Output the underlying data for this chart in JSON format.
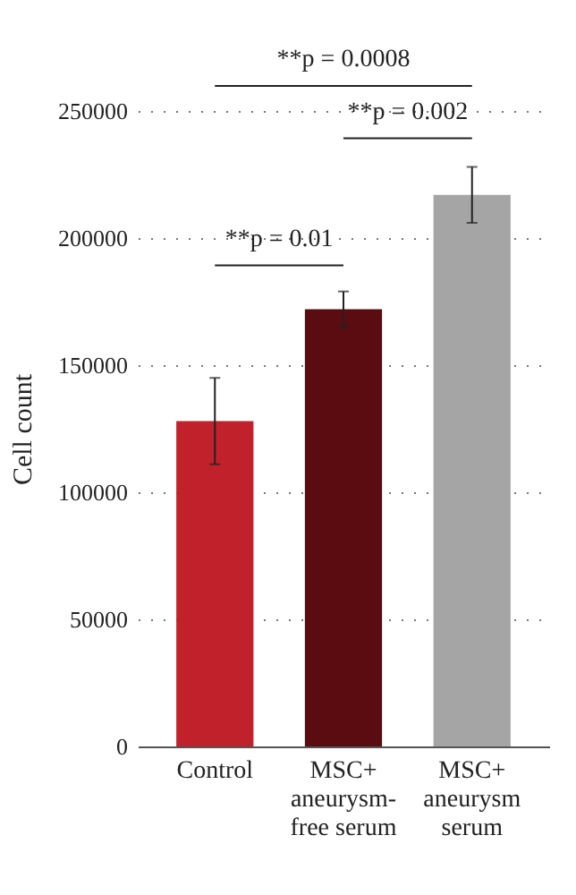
{
  "chart_data": {
    "type": "bar",
    "ylabel": "Cell count",
    "categories": [
      "Control",
      "MSC+ aneurysm-free serum",
      "MSC+ aneurysm serum"
    ],
    "values": [
      128000,
      172000,
      217000
    ],
    "colors": [
      "#c1212a",
      "#5a0c10",
      "#a5a5a5"
    ],
    "errors": [
      [
        111000,
        145000
      ],
      [
        165000,
        179000
      ],
      [
        206000,
        228000
      ]
    ],
    "ylim": [
      0,
      250000
    ],
    "yticks": [
      0,
      50000,
      100000,
      150000,
      200000,
      250000
    ],
    "grid": "y",
    "annotations": [
      "**p = 0.01",
      "**p = 0.002",
      "**p = 0.0008"
    ]
  }
}
